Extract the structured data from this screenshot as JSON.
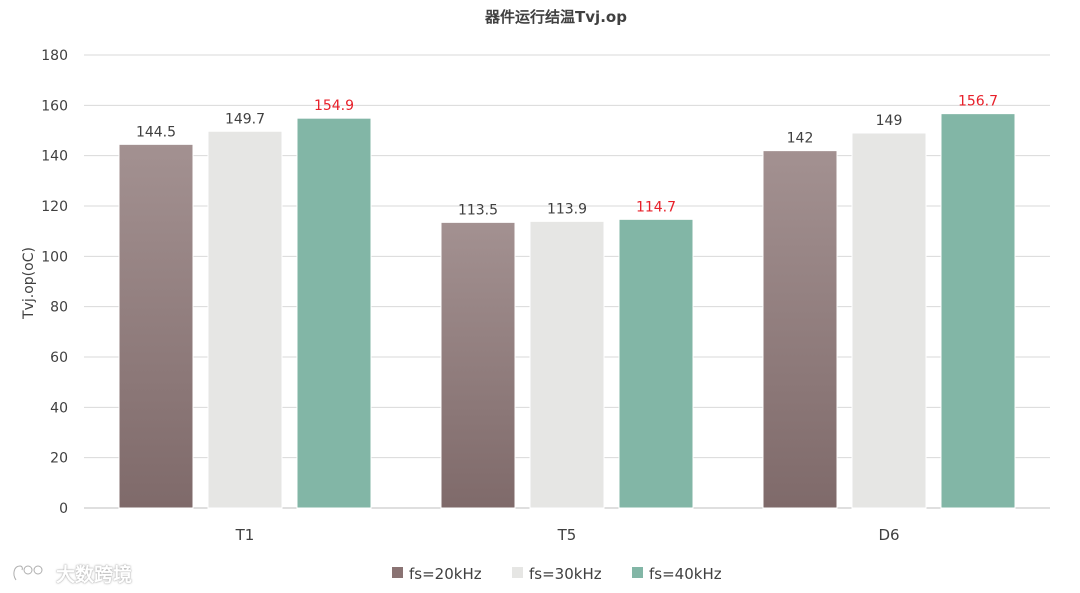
{
  "chart_data": {
    "type": "bar",
    "title": "器件运行结温Tvj.op",
    "ylabel": "Tvj.op(oC)",
    "xlabel": "",
    "categories": [
      "T1",
      "T5",
      "D6"
    ],
    "ylim": [
      0,
      180
    ],
    "yticks": [
      0,
      20,
      40,
      60,
      80,
      100,
      120,
      140,
      160,
      180
    ],
    "grid": true,
    "legend_position": "bottom",
    "series": [
      {
        "name": "fs=20kHz",
        "values": [
          144.5,
          113.5,
          142
        ],
        "value_labels": [
          "144.5",
          "113.5",
          "142"
        ],
        "color": "#8a7373",
        "label_color": "#404040"
      },
      {
        "name": "fs=30kHz",
        "values": [
          149.7,
          113.9,
          149
        ],
        "value_labels": [
          "149.7",
          "113.9",
          "149"
        ],
        "color": "#e6e6e4",
        "label_color": "#404040"
      },
      {
        "name": "fs=40kHz",
        "values": [
          154.9,
          114.7,
          156.7
        ],
        "value_labels": [
          "154.9",
          "114.7",
          "156.7"
        ],
        "color": "#82b6a6",
        "label_color": "#e8202a"
      }
    ]
  },
  "watermark": {
    "text": "大数跨境",
    "icon": "brand-logo-icon"
  }
}
